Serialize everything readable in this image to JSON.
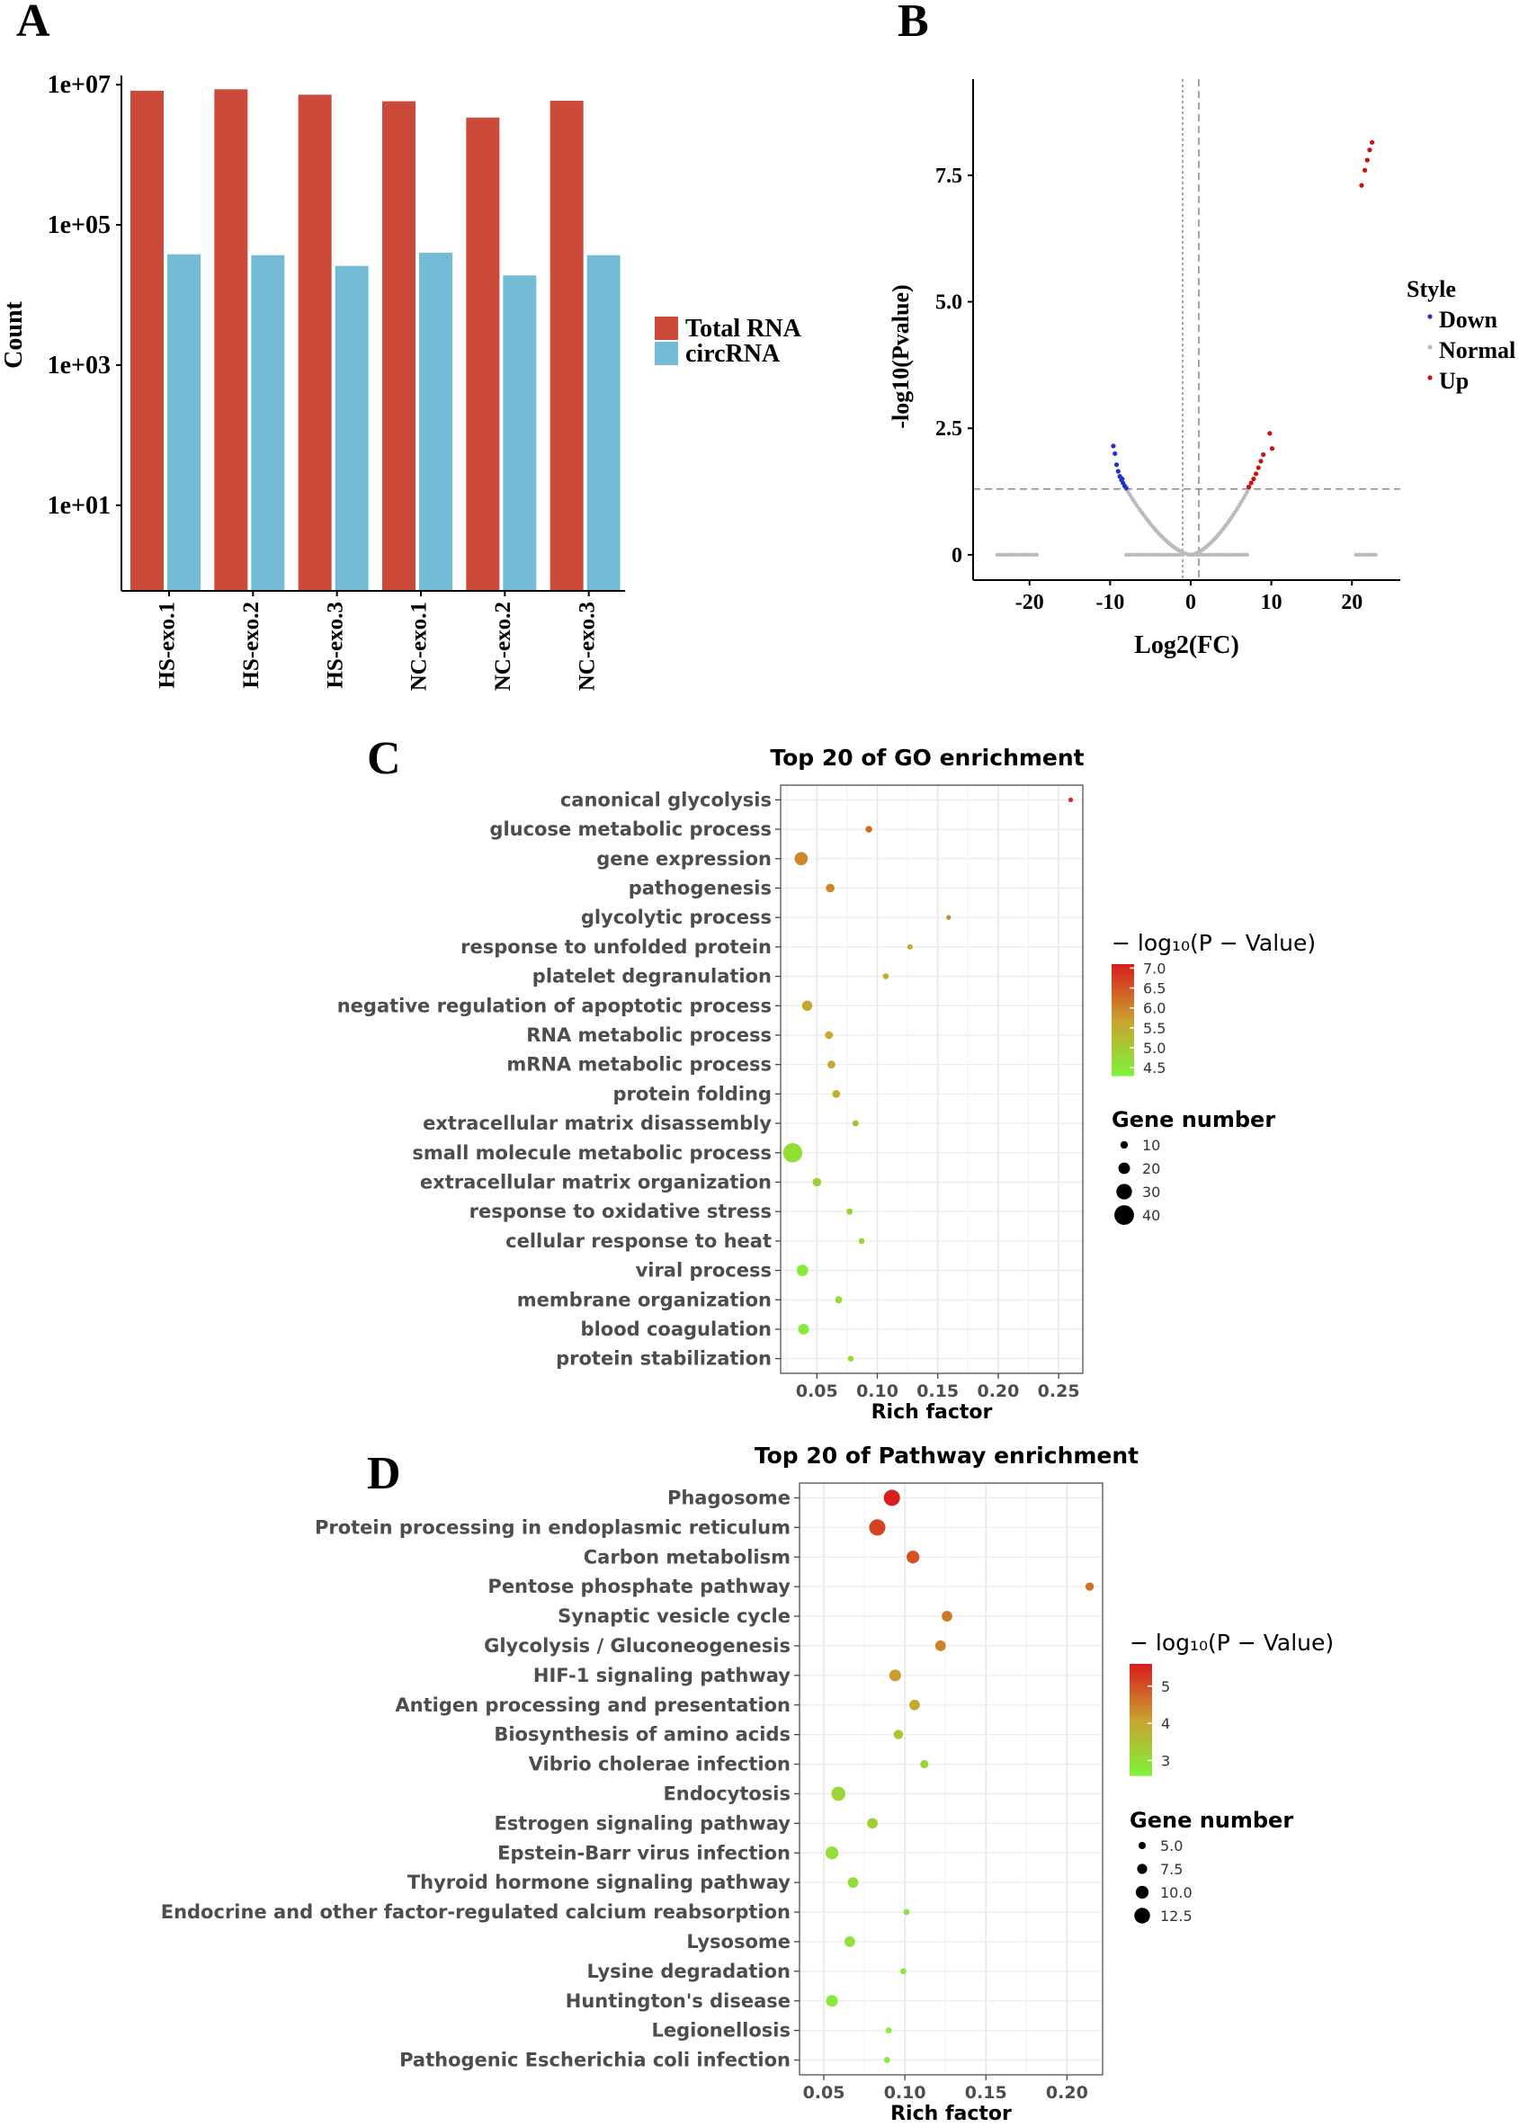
{
  "panels": {
    "A": "A",
    "B": "B",
    "C": "C",
    "D": "D"
  },
  "chart_data": [
    {
      "id": "A",
      "type": "bar",
      "ylabel": "Count",
      "yscale": "log",
      "yticks": [
        "1e+01",
        "1e+03",
        "1e+05",
        "1e+07"
      ],
      "ytick_values": [
        10,
        1000,
        100000,
        10000000
      ],
      "ylim": [
        0.6,
        12000000
      ],
      "categories": [
        "HS-exo.1",
        "HS-exo.2",
        "HS-exo.3",
        "NC-exo.1",
        "NC-exo.2",
        "NC-exo.3"
      ],
      "series": [
        {
          "name": "Total RNA",
          "color": "#cc4a3a",
          "values": [
            8200000,
            8600000,
            7200000,
            5800000,
            3400000,
            5900000
          ]
        },
        {
          "name": "circRNA",
          "color": "#74bcd6",
          "values": [
            38000,
            37000,
            26000,
            40000,
            19000,
            37000
          ]
        }
      ],
      "legend_position": "right"
    },
    {
      "id": "B",
      "type": "scatter",
      "xlabel": "Log2(FC)",
      "ylabel": "-log10(Pvalue)",
      "xticks": [
        -20,
        -10,
        0,
        10,
        20
      ],
      "yticks": [
        0,
        2.5,
        5.0,
        7.5
      ],
      "ytick_labels": [
        "0",
        "2.5",
        "5.0",
        "7.5"
      ],
      "xlim": [
        -27,
        26
      ],
      "ylim": [
        -0.5,
        9.4
      ],
      "threshold_lines": {
        "vertical": [
          -1,
          1
        ],
        "horizontal": 1.3
      },
      "legend_title": "Style",
      "legend_labels": [
        "Down",
        "Normal",
        "Up"
      ],
      "colors": {
        "Down": "#2233cc",
        "Normal": "#bbbbbb",
        "Up": "#cc1111"
      },
      "down_points": [
        [
          -9.6,
          2.15
        ],
        [
          -9.4,
          2.0
        ],
        [
          -9.2,
          1.78
        ],
        [
          -9.0,
          1.65
        ],
        [
          -8.8,
          1.55
        ],
        [
          -8.6,
          1.48
        ],
        [
          -8.4,
          1.42
        ],
        [
          -8.2,
          1.36
        ],
        [
          -8.0,
          1.32
        ],
        [
          -8.5,
          1.5
        ]
      ],
      "up_points": [
        [
          7.2,
          1.34
        ],
        [
          7.5,
          1.42
        ],
        [
          7.8,
          1.5
        ],
        [
          8.1,
          1.6
        ],
        [
          8.4,
          1.72
        ],
        [
          8.7,
          1.85
        ],
        [
          9.0,
          1.98
        ],
        [
          9.8,
          2.4
        ],
        [
          10.1,
          2.1
        ],
        [
          21.2,
          7.3
        ],
        [
          21.6,
          7.6
        ],
        [
          21.9,
          7.8
        ],
        [
          22.2,
          8.0
        ],
        [
          22.5,
          8.15
        ]
      ],
      "normal_curve": {
        "xmin": -8,
        "xmax": 7.2,
        "ymax": 1.3
      },
      "normal_zero_bands": [
        [
          -24,
          -19
        ],
        [
          -8,
          -1
        ],
        [
          0,
          7
        ],
        [
          20.5,
          23
        ]
      ]
    },
    {
      "id": "C",
      "type": "scatter",
      "title": "Top 20 of GO enrichment",
      "xlabel": "Rich factor",
      "xticks": [
        0.05,
        0.1,
        0.15,
        0.2,
        0.25
      ],
      "xtick_labels": [
        "0.05",
        "0.10",
        "0.15",
        "0.20",
        "0.25"
      ],
      "xlim": [
        0.02,
        0.27
      ],
      "categories": [
        "canonical glycolysis",
        "glucose metabolic process",
        "gene expression",
        "pathogenesis",
        "glycolytic process",
        "response to unfolded protein",
        "platelet degranulation",
        "negative regulation of apoptotic process",
        "RNA metabolic process",
        "mRNA metabolic process",
        "protein folding",
        "extracellular matrix disassembly",
        "small molecule metabolic process",
        "extracellular matrix organization",
        "response to oxidative stress",
        "cellular response to heat",
        "viral process",
        "membrane organization",
        "blood coagulation",
        "protein stabilization"
      ],
      "rich_factor": [
        0.26,
        0.093,
        0.037,
        0.061,
        0.159,
        0.127,
        0.107,
        0.042,
        0.06,
        0.062,
        0.066,
        0.082,
        0.03,
        0.05,
        0.077,
        0.087,
        0.038,
        0.068,
        0.039,
        0.078
      ],
      "gene_number": [
        3,
        8,
        24,
        13,
        3,
        5,
        6,
        17,
        11,
        11,
        11,
        7,
        39,
        13,
        7,
        6,
        20,
        9,
        18,
        6
      ],
      "neg_log10_p": [
        7.0,
        6.3,
        6.0,
        6.0,
        6.0,
        5.6,
        5.6,
        5.6,
        5.6,
        5.6,
        5.5,
        5.3,
        4.7,
        5.0,
        4.9,
        4.9,
        4.5,
        4.8,
        4.5,
        4.7
      ],
      "color_legend_title": "− log₁₀(P − Value)",
      "color_ticks": [
        "7.0",
        "6.5",
        "6.0",
        "5.5",
        "5.0",
        "4.5"
      ],
      "color_tick_values": [
        7.0,
        6.5,
        6.0,
        5.5,
        5.0,
        4.5
      ],
      "color_range": [
        4.3,
        7.1
      ],
      "size_legend_title": "Gene number",
      "size_ticks": [
        "10",
        "20",
        "30",
        "40"
      ],
      "size_tick_values": [
        10,
        20,
        30,
        40
      ]
    },
    {
      "id": "D",
      "type": "scatter",
      "title": "Top 20 of Pathway enrichment",
      "xlabel": "Rich factor",
      "xticks": [
        0.05,
        0.1,
        0.15,
        0.2
      ],
      "xtick_labels": [
        "0.05",
        "0.10",
        "0.15",
        "0.20"
      ],
      "xlim": [
        0.035,
        0.222
      ],
      "categories": [
        "Phagosome",
        "Protein processing in endoplasmic reticulum",
        "Carbon metabolism",
        "Pentose phosphate pathway",
        "Synaptic vesicle cycle",
        "Glycolysis / Gluconeogenesis",
        "HIF-1 signaling pathway",
        "Antigen processing and presentation",
        "Biosynthesis of amino acids",
        "Vibrio cholerae infection",
        "Endocytosis",
        "Estrogen signaling pathway",
        "Epstein-Barr virus infection",
        "Thyroid hormone signaling pathway",
        "Endocrine and other factor-regulated calcium reabsorption",
        "Lysosome",
        "Lysine degradation",
        "Huntington's disease",
        "Legionellosis",
        "Pathogenic Escherichia coli infection"
      ],
      "rich_factor": [
        0.092,
        0.083,
        0.105,
        0.214,
        0.126,
        0.122,
        0.094,
        0.106,
        0.096,
        0.112,
        0.059,
        0.08,
        0.055,
        0.068,
        0.101,
        0.066,
        0.099,
        0.055,
        0.09,
        0.089
      ],
      "gene_number": [
        13,
        13,
        10,
        6,
        8,
        8,
        9,
        8,
        7,
        6,
        11,
        8,
        10,
        8,
        4,
        8,
        4,
        9,
        4,
        4
      ],
      "neg_log10_p": [
        5.6,
        5.2,
        5.0,
        4.7,
        4.6,
        4.5,
        4.2,
        4.0,
        3.5,
        3.2,
        3.2,
        3.3,
        3.0,
        3.0,
        3.0,
        3.0,
        2.8,
        2.8,
        2.7,
        2.7
      ],
      "color_legend_title": "− log₁₀(P − Value)",
      "color_ticks": [
        "5",
        "4",
        "3"
      ],
      "color_tick_values": [
        5,
        4,
        3
      ],
      "color_range": [
        2.6,
        5.6
      ],
      "size_legend_title": "Gene number",
      "size_ticks": [
        "5.0",
        "7.5",
        "10.0",
        "12.5"
      ],
      "size_tick_values": [
        5.0,
        7.5,
        10.0,
        12.5
      ]
    }
  ]
}
